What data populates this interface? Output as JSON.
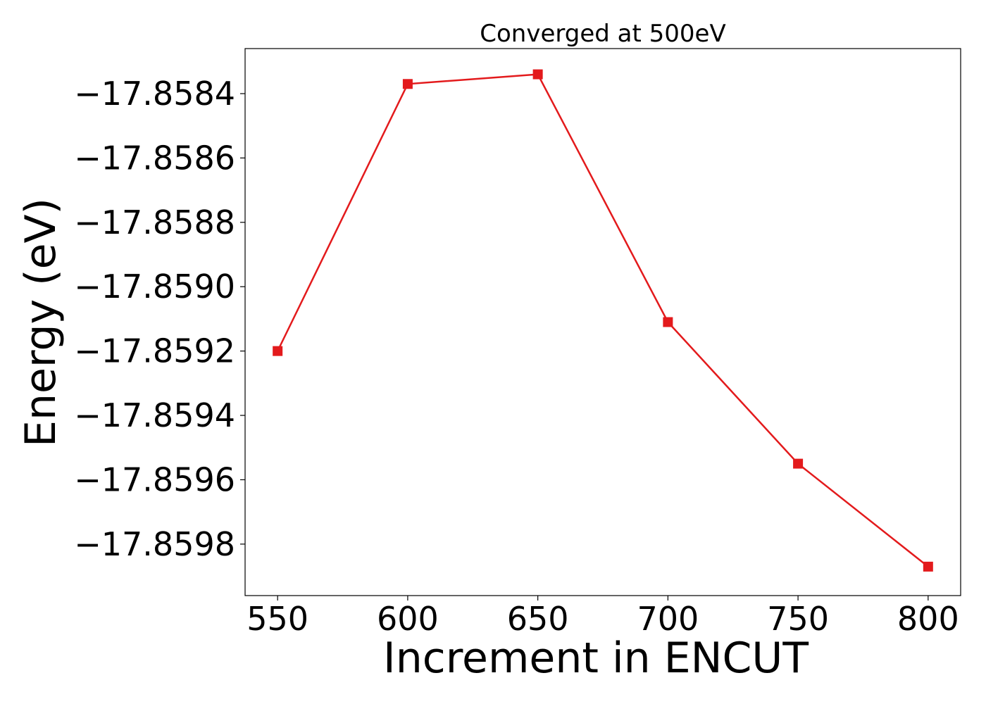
{
  "chart_data": {
    "type": "line",
    "title": "Converged at 500eV",
    "xlabel": "Increment in ENCUT",
    "ylabel": "Energy (eV)",
    "x": [
      550,
      600,
      650,
      700,
      750,
      800
    ],
    "series": [
      {
        "values": [
          -17.8592,
          -17.85837,
          -17.85834,
          -17.85911,
          -17.85955,
          -17.85987
        ],
        "color": "#e31a1c",
        "marker": "square"
      }
    ],
    "xlim": [
      537.5,
      812.5
    ],
    "ylim": [
      -17.85996,
      -17.85826
    ],
    "xticks": [
      550,
      600,
      650,
      700,
      750,
      800
    ],
    "xtick_labels": [
      "550",
      "600",
      "650",
      "700",
      "750",
      "800"
    ],
    "yticks": [
      -17.8584,
      -17.8586,
      -17.8588,
      -17.859,
      -17.8592,
      -17.8594,
      -17.8596,
      -17.8598
    ],
    "ytick_labels": [
      "−17.8584",
      "−17.8586",
      "−17.8588",
      "−17.8590",
      "−17.8592",
      "−17.8594",
      "−17.8596",
      "−17.8598"
    ],
    "grid": false,
    "legend": "none"
  }
}
